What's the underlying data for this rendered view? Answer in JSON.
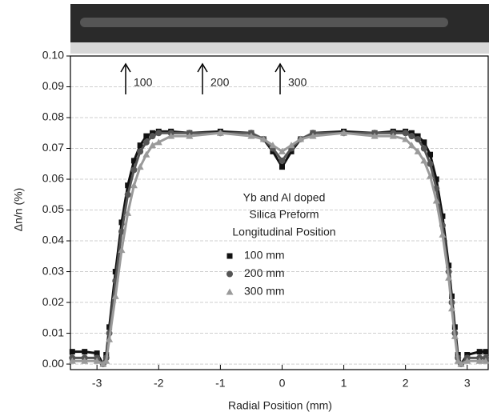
{
  "chart_data": {
    "type": "scatter",
    "xlabel": "Radial Position  (mm)",
    "ylabel": "Δn/n  (%)",
    "annotations": [
      {
        "text": "100"
      },
      {
        "text": "200"
      },
      {
        "text": "300"
      }
    ],
    "legend_title": [
      "Yb and Al doped",
      "Silica Preform",
      "Longitudinal Position"
    ],
    "x": [
      -3.4,
      -3.2,
      -3.0,
      -2.9,
      -2.85,
      -2.8,
      -2.7,
      -2.6,
      -2.5,
      -2.4,
      -2.3,
      -2.2,
      -2.1,
      -2.0,
      -1.8,
      -1.5,
      -1.0,
      -0.5,
      -0.3,
      -0.15,
      0,
      0.15,
      0.3,
      0.5,
      1.0,
      1.5,
      1.8,
      2.0,
      2.1,
      2.2,
      2.3,
      2.4,
      2.5,
      2.6,
      2.7,
      2.75,
      2.8,
      2.85,
      2.9,
      3.0,
      3.2,
      3.3
    ],
    "series": [
      {
        "name": "100 mm",
        "color": "#111111",
        "marker": "square",
        "values": [
          0.004,
          0.004,
          0.0035,
          0.0,
          0.003,
          0.012,
          0.03,
          0.046,
          0.058,
          0.066,
          0.071,
          0.074,
          0.075,
          0.0755,
          0.0755,
          0.075,
          0.0755,
          0.075,
          0.073,
          0.069,
          0.064,
          0.069,
          0.073,
          0.075,
          0.0755,
          0.075,
          0.0755,
          0.0755,
          0.075,
          0.074,
          0.072,
          0.068,
          0.06,
          0.048,
          0.032,
          0.022,
          0.012,
          0.003,
          0.0,
          0.003,
          0.004,
          0.004
        ]
      },
      {
        "name": "200 mm",
        "color": "#555555",
        "marker": "circle",
        "values": [
          0.002,
          0.002,
          0.002,
          0.0,
          0.002,
          0.01,
          0.027,
          0.043,
          0.055,
          0.063,
          0.069,
          0.072,
          0.074,
          0.075,
          0.075,
          0.075,
          0.075,
          0.075,
          0.073,
          0.07,
          0.066,
          0.07,
          0.073,
          0.075,
          0.075,
          0.075,
          0.075,
          0.075,
          0.074,
          0.073,
          0.07,
          0.065,
          0.057,
          0.045,
          0.03,
          0.02,
          0.01,
          0.002,
          0.0,
          0.002,
          0.002,
          0.002
        ]
      },
      {
        "name": "300 mm",
        "color": "#9a9a9a",
        "marker": "triangle",
        "values": [
          0.001,
          0.001,
          0.001,
          0.0,
          0.001,
          0.008,
          0.022,
          0.037,
          0.049,
          0.058,
          0.064,
          0.068,
          0.071,
          0.072,
          0.074,
          0.074,
          0.075,
          0.074,
          0.073,
          0.071,
          0.069,
          0.071,
          0.073,
          0.074,
          0.075,
          0.074,
          0.074,
          0.073,
          0.071,
          0.069,
          0.066,
          0.061,
          0.053,
          0.042,
          0.028,
          0.018,
          0.009,
          0.001,
          0.0,
          0.001,
          0.001,
          0.001
        ]
      }
    ],
    "xlim": [
      -3.43,
      3.34
    ],
    "xticks": [
      -3,
      -2,
      -1,
      0,
      1,
      2,
      3
    ],
    "ylim": [
      -0.0018,
      0.1
    ],
    "yticks": [
      {
        "value": 0,
        "label": "0.00"
      },
      0.01,
      0.02,
      0.03,
      0.04,
      0.05,
      0.06,
      0.07,
      0.08,
      0.09,
      {
        "value": 0.1,
        "label": "0.10"
      }
    ],
    "grid": true
  }
}
